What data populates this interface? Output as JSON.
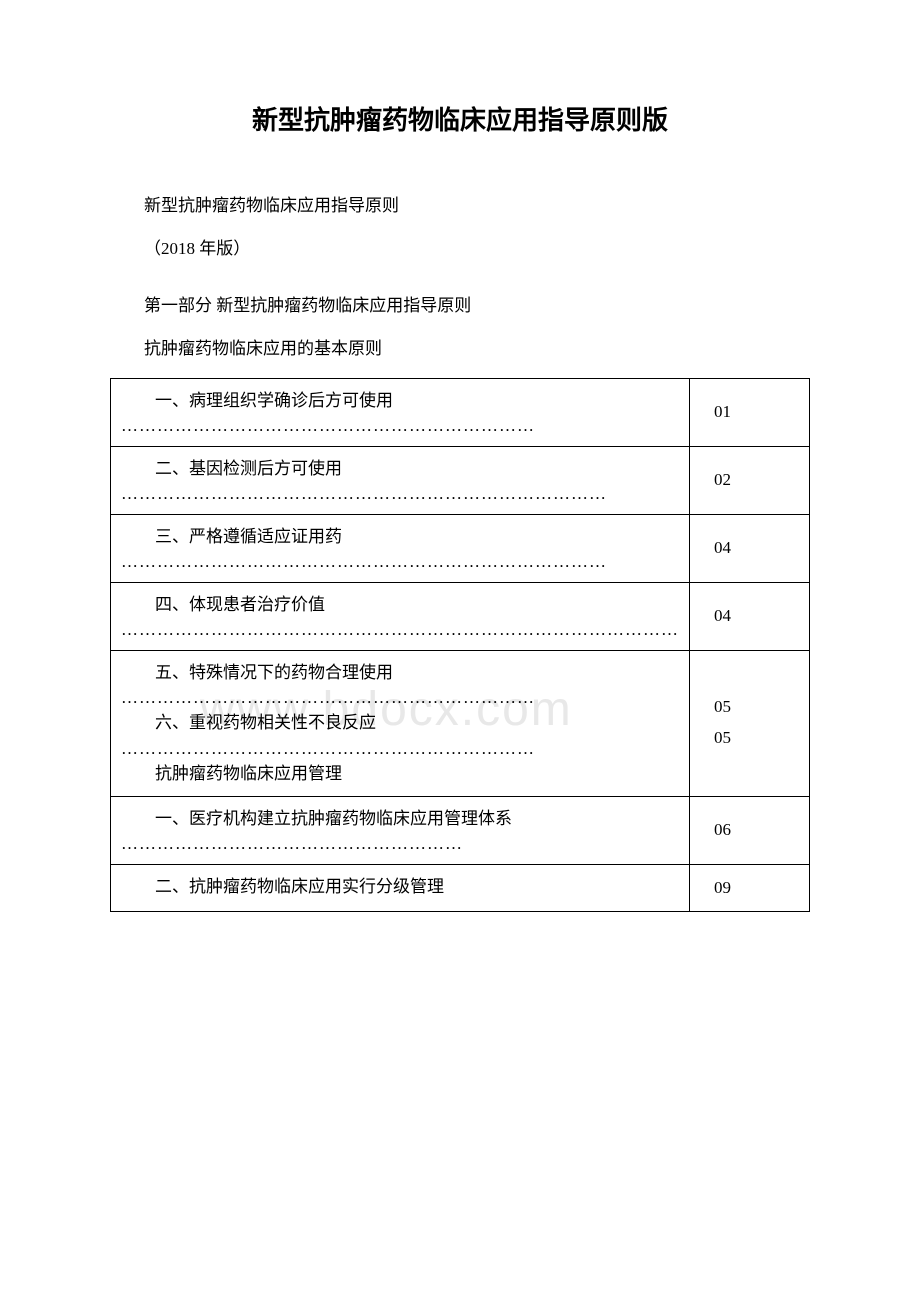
{
  "title": "新型抗肿瘤药物临床应用指导原则版",
  "subtitle1": "新型抗肿瘤药物临床应用指导原则",
  "subtitle2": "（2018 年版）",
  "part1": "第一部分 新型抗肿瘤药物临床应用指导原则",
  "section1": "抗肿瘤药物临床应用的基本原则",
  "watermark": "www.bdocx.com",
  "toc_rows": [
    {
      "left": [
        {
          "text": "一、病理组织学确诊后方可使用",
          "type": "item-wrap"
        },
        {
          "text": "……………………………………………………………",
          "type": "dots"
        }
      ],
      "right": [
        "01"
      ]
    },
    {
      "left": [
        {
          "text": "二、基因检测后方可使用",
          "type": "item"
        },
        {
          "text": "………………………………………………………………………",
          "type": "dots"
        }
      ],
      "right": [
        "02"
      ]
    },
    {
      "left": [
        {
          "text": "三、严格遵循适应证用药",
          "type": "item"
        },
        {
          "text": "………………………………………………………………………",
          "type": "dots"
        }
      ],
      "right": [
        "04"
      ]
    },
    {
      "left": [
        {
          "text": "四、体现患者治疗价值",
          "type": "item"
        },
        {
          "text": "…………………………………………………………………………………",
          "type": "dots"
        }
      ],
      "right": [
        "04"
      ]
    },
    {
      "left": [
        {
          "text": "五、特殊情况下的药物合理使用",
          "type": "item-wrap"
        },
        {
          "text": "……………………………………………………………",
          "type": "dots"
        },
        {
          "text": "六、重视药物相关性不良反应",
          "type": "item"
        },
        {
          "text": "……………………………………………………………",
          "type": "dots"
        },
        {
          "text": "抗肿瘤药物临床应用管理",
          "type": "item"
        }
      ],
      "right": [
        "05",
        "05"
      ]
    },
    {
      "left": [
        {
          "text": "一、医疗机构建立抗肿瘤药物临床应用管理体系",
          "type": "item-wrap"
        },
        {
          "text": "…………………………………………………",
          "type": "dots"
        }
      ],
      "right": [
        "06"
      ]
    },
    {
      "left": [
        {
          "text": "二、抗肿瘤药物临床应用实行分级管理",
          "type": "item-wrap"
        }
      ],
      "right": [
        "09"
      ]
    }
  ],
  "colors": {
    "text": "#000000",
    "background": "#ffffff",
    "border": "#000000",
    "watermark": "#e8e8e8"
  },
  "typography": {
    "title_fontsize": 26,
    "body_fontsize": 17,
    "watermark_fontsize": 48
  }
}
